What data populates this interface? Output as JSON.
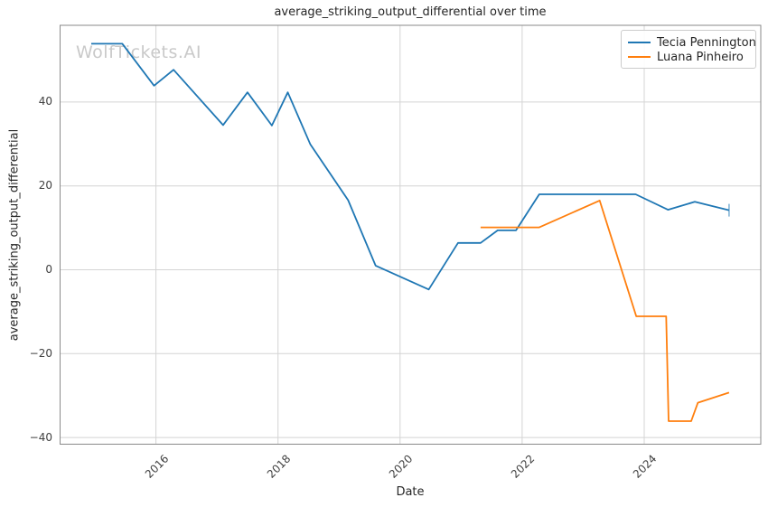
{
  "watermark": "WolfTickets.AI",
  "chart_data": {
    "type": "line",
    "title": "average_striking_output_differential over time",
    "xlabel": "Date",
    "ylabel": "average_striking_output_differential",
    "xlim": [
      2014.43,
      2025.91
    ],
    "ylim": [
      -41.6,
      58.3
    ],
    "xticks": [
      2016,
      2018,
      2020,
      2022,
      2024
    ],
    "xticklabels": [
      "2016",
      "2018",
      "2020",
      "2022",
      "2024"
    ],
    "yticks": [
      40,
      20,
      0,
      -20,
      -40
    ],
    "yticklabels": [
      "40",
      "20",
      "0",
      "−20",
      "−40"
    ],
    "grid": true,
    "legend_position": "upper right",
    "series": [
      {
        "name": "Tecia Pennington",
        "color": "#1f77b4",
        "end_marker": "tick",
        "points": [
          [
            2014.94,
            53.9
          ],
          [
            2015.45,
            53.9
          ],
          [
            2015.97,
            43.9
          ],
          [
            2016.29,
            47.7
          ],
          [
            2017.1,
            34.5
          ],
          [
            2017.5,
            42.3
          ],
          [
            2017.9,
            34.4
          ],
          [
            2018.16,
            42.3
          ],
          [
            2018.53,
            29.9
          ],
          [
            2019.15,
            16.6
          ],
          [
            2019.6,
            1.0
          ],
          [
            2020.47,
            -4.7
          ],
          [
            2020.95,
            6.4
          ],
          [
            2021.32,
            6.4
          ],
          [
            2021.6,
            9.4
          ],
          [
            2021.9,
            9.4
          ],
          [
            2022.28,
            18.0
          ],
          [
            2023.86,
            18.0
          ],
          [
            2024.39,
            14.3
          ],
          [
            2024.83,
            16.2
          ],
          [
            2025.39,
            14.2
          ]
        ]
      },
      {
        "name": "Luana Pinheiro",
        "color": "#ff7f0e",
        "end_marker": "none",
        "points": [
          [
            2021.32,
            10.1
          ],
          [
            2022.28,
            10.1
          ],
          [
            2023.27,
            16.5
          ],
          [
            2023.87,
            -11.1
          ],
          [
            2024.36,
            -11.1
          ],
          [
            2024.4,
            -36.1
          ],
          [
            2024.77,
            -36.1
          ],
          [
            2024.88,
            -31.7
          ],
          [
            2025.39,
            -29.3
          ]
        ]
      }
    ]
  }
}
